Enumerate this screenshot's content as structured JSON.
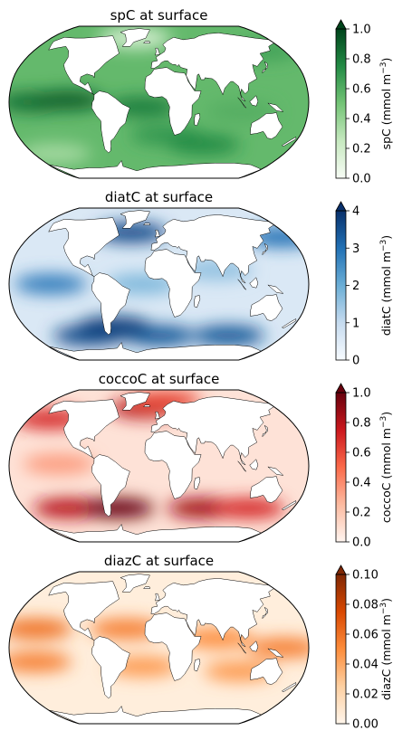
{
  "chart_data": [
    {
      "type": "heatmap",
      "title": "spC at surface",
      "projection": "Robinson",
      "colormap": "Greens",
      "colorbar": {
        "label": "spC (mmol m",
        "label_sup": "−3",
        "label_end": ")",
        "range": [
          0,
          1.0
        ],
        "ticks": [
          "0.0",
          "0.2",
          "0.4",
          "0.6",
          "0.8",
          "1.0"
        ],
        "extend": "max"
      },
      "colors": [
        "#f7fcf5",
        "#c7e9c0",
        "#74c476",
        "#238b45",
        "#00441b"
      ],
      "ocean_base_level": 0.55,
      "features": [
        {
          "lon": -150,
          "lat": 0,
          "level": 0.85
        },
        {
          "lon": -110,
          "lat": 2,
          "level": 0.9
        },
        {
          "lon": -20,
          "lat": -5,
          "level": 0.8
        },
        {
          "lon": 10,
          "lat": -35,
          "level": 0.7
        },
        {
          "lon": 60,
          "lat": -45,
          "level": 0.75
        },
        {
          "lon": 150,
          "lat": 55,
          "level": 0.65
        },
        {
          "lon": -40,
          "lat": 70,
          "level": 0.15
        },
        {
          "lon": -150,
          "lat": -55,
          "level": 0.35
        },
        {
          "lon": 100,
          "lat": -10,
          "level": 0.6
        }
      ]
    },
    {
      "type": "heatmap",
      "title": "diatC at surface",
      "projection": "Robinson",
      "colormap": "Blues",
      "colorbar": {
        "label": "diatC (mmol m",
        "label_sup": "−3",
        "label_end": ")",
        "range": [
          0,
          4
        ],
        "ticks": [
          "0",
          "1",
          "2",
          "3",
          "4"
        ],
        "extend": "max"
      },
      "colors": [
        "#f7fbff",
        "#c6dbef",
        "#6baed6",
        "#2171b5",
        "#08306b"
      ],
      "ocean_base_level": 0.15,
      "features": [
        {
          "lon": -130,
          "lat": 0,
          "level": 0.7
        },
        {
          "lon": -20,
          "lat": 0,
          "level": 0.45
        },
        {
          "lon": -40,
          "lat": 55,
          "level": 0.9
        },
        {
          "lon": 170,
          "lat": 50,
          "level": 0.75
        },
        {
          "lon": -100,
          "lat": -55,
          "level": 0.9
        },
        {
          "lon": 0,
          "lat": -55,
          "level": 0.85
        },
        {
          "lon": 100,
          "lat": -55,
          "level": 0.85
        },
        {
          "lon": -60,
          "lat": -45,
          "level": 0.95
        },
        {
          "lon": 70,
          "lat": 15,
          "level": 0.4
        }
      ]
    },
    {
      "type": "heatmap",
      "title": "coccoC at surface",
      "projection": "Robinson",
      "colormap": "Reds",
      "colorbar": {
        "label": "coccoC (mmol m",
        "label_sup": "−3",
        "label_end": ")",
        "range": [
          0,
          1.0
        ],
        "ticks": [
          "0.0",
          "0.2",
          "0.4",
          "0.6",
          "0.8",
          "1.0"
        ],
        "extend": "max"
      },
      "colors": [
        "#fff5f0",
        "#fcbba1",
        "#fb6a4a",
        "#cb181d",
        "#67000d"
      ],
      "ocean_base_level": 0.08,
      "features": [
        {
          "lon": -150,
          "lat": 50,
          "level": 0.7
        },
        {
          "lon": -20,
          "lat": 62,
          "level": 0.8
        },
        {
          "lon": 10,
          "lat": 72,
          "level": 0.6
        },
        {
          "lon": -120,
          "lat": -45,
          "level": 0.8
        },
        {
          "lon": -55,
          "lat": -45,
          "level": 1.0
        },
        {
          "lon": 60,
          "lat": -45,
          "level": 0.85
        },
        {
          "lon": 120,
          "lat": -45,
          "level": 0.7
        },
        {
          "lon": -120,
          "lat": 2,
          "level": 0.35
        }
      ]
    },
    {
      "type": "heatmap",
      "title": "diazC at surface",
      "projection": "Robinson",
      "colormap": "Oranges",
      "colorbar": {
        "label": "diazC (mmol m",
        "label_sup": "−3",
        "label_end": ")",
        "range": [
          0,
          0.1
        ],
        "ticks": [
          "0.00",
          "0.02",
          "0.04",
          "0.06",
          "0.08",
          "0.10"
        ],
        "extend": "max"
      },
      "colors": [
        "#fff5eb",
        "#fdd0a2",
        "#fd8d3c",
        "#d94801",
        "#7f2704"
      ],
      "ocean_base_level": 0.05,
      "features": [
        {
          "lon": -150,
          "lat": 20,
          "level": 0.6
        },
        {
          "lon": -150,
          "lat": -15,
          "level": 0.55
        },
        {
          "lon": -40,
          "lat": 20,
          "level": 0.55
        },
        {
          "lon": 70,
          "lat": 10,
          "level": 0.5
        },
        {
          "lon": 150,
          "lat": 0,
          "level": 0.55
        },
        {
          "lon": 100,
          "lat": -25,
          "level": 0.45
        },
        {
          "lon": -20,
          "lat": -20,
          "level": 0.45
        }
      ]
    }
  ]
}
